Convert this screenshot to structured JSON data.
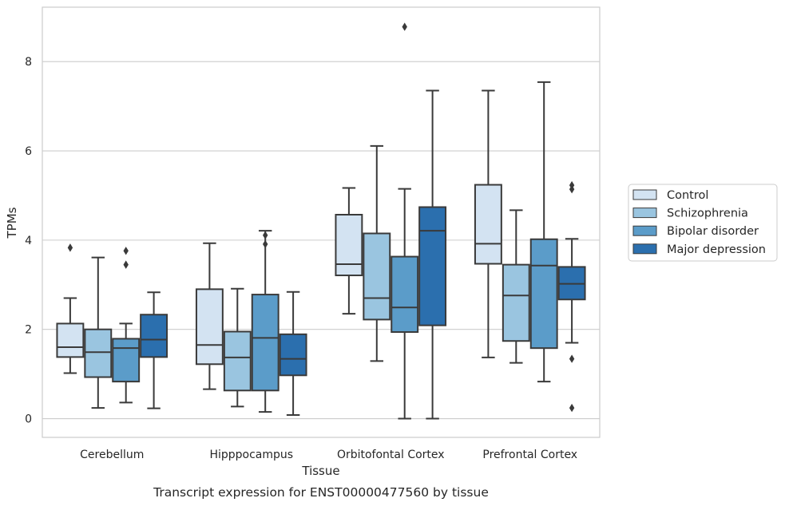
{
  "chart_data": {
    "type": "box",
    "title": "",
    "caption": "Transcript expression for ENST00000477560 by tissue",
    "xlabel": "Tissue",
    "ylabel": "TPMs",
    "ylim": [
      -0.42,
      9.22
    ],
    "yticks": [
      0,
      2,
      4,
      6,
      8
    ],
    "grid": true,
    "legend_position": "right",
    "categories": [
      "Cerebellum",
      "Hipppocampus",
      "Orbitofontal Cortex",
      "Prefrontal Cortex"
    ],
    "series": [
      {
        "name": "Control",
        "color": "#d3e3f2",
        "boxes": [
          {
            "whisker_low": 1.02,
            "q1": 1.38,
            "median": 1.6,
            "q3": 2.13,
            "whisker_high": 2.7,
            "outliers": [
              3.83
            ]
          },
          {
            "whisker_low": 0.66,
            "q1": 1.22,
            "median": 1.65,
            "q3": 2.9,
            "whisker_high": 3.93,
            "outliers": []
          },
          {
            "whisker_low": 2.35,
            "q1": 3.21,
            "median": 3.46,
            "q3": 4.57,
            "whisker_high": 5.17,
            "outliers": []
          },
          {
            "whisker_low": 1.37,
            "q1": 3.47,
            "median": 3.92,
            "q3": 5.24,
            "whisker_high": 7.35,
            "outliers": []
          }
        ]
      },
      {
        "name": "Schizophrenia",
        "color": "#9ac5e0",
        "boxes": [
          {
            "whisker_low": 0.24,
            "q1": 0.93,
            "median": 1.49,
            "q3": 2.0,
            "whisker_high": 3.61,
            "outliers": []
          },
          {
            "whisker_low": 0.27,
            "q1": 0.63,
            "median": 1.37,
            "q3": 1.95,
            "whisker_high": 2.91,
            "outliers": []
          },
          {
            "whisker_low": 1.29,
            "q1": 2.22,
            "median": 2.7,
            "q3": 4.15,
            "whisker_high": 6.11,
            "outliers": []
          },
          {
            "whisker_low": 1.25,
            "q1": 1.74,
            "median": 2.76,
            "q3": 3.45,
            "whisker_high": 4.67,
            "outliers": []
          }
        ]
      },
      {
        "name": "Bipolar disorder",
        "color": "#5b9cc9",
        "boxes": [
          {
            "whisker_low": 0.36,
            "q1": 0.83,
            "median": 1.58,
            "q3": 1.79,
            "whisker_high": 2.13,
            "outliers": [
              3.45,
              3.76
            ]
          },
          {
            "whisker_low": 0.15,
            "q1": 0.63,
            "median": 1.81,
            "q3": 2.78,
            "whisker_high": 4.21,
            "outliers": [
              3.91,
              4.11
            ]
          },
          {
            "whisker_low": 0.0,
            "q1": 1.94,
            "median": 2.49,
            "q3": 3.63,
            "whisker_high": 5.15,
            "outliers": [
              8.78
            ]
          },
          {
            "whisker_low": 0.83,
            "q1": 1.58,
            "median": 3.43,
            "q3": 4.02,
            "whisker_high": 7.54,
            "outliers": []
          }
        ]
      },
      {
        "name": "Major depression",
        "color": "#2b6fae",
        "boxes": [
          {
            "whisker_low": 0.23,
            "q1": 1.38,
            "median": 1.77,
            "q3": 2.33,
            "whisker_high": 2.83,
            "outliers": []
          },
          {
            "whisker_low": 0.08,
            "q1": 0.97,
            "median": 1.34,
            "q3": 1.89,
            "whisker_high": 2.84,
            "outliers": []
          },
          {
            "whisker_low": 0.0,
            "q1": 2.09,
            "median": 4.21,
            "q3": 4.74,
            "whisker_high": 7.35,
            "outliers": []
          },
          {
            "whisker_low": 1.7,
            "q1": 2.67,
            "median": 3.02,
            "q3": 3.4,
            "whisker_high": 4.03,
            "outliers": [
              0.24,
              1.34,
              5.14,
              5.23
            ]
          }
        ]
      }
    ]
  }
}
